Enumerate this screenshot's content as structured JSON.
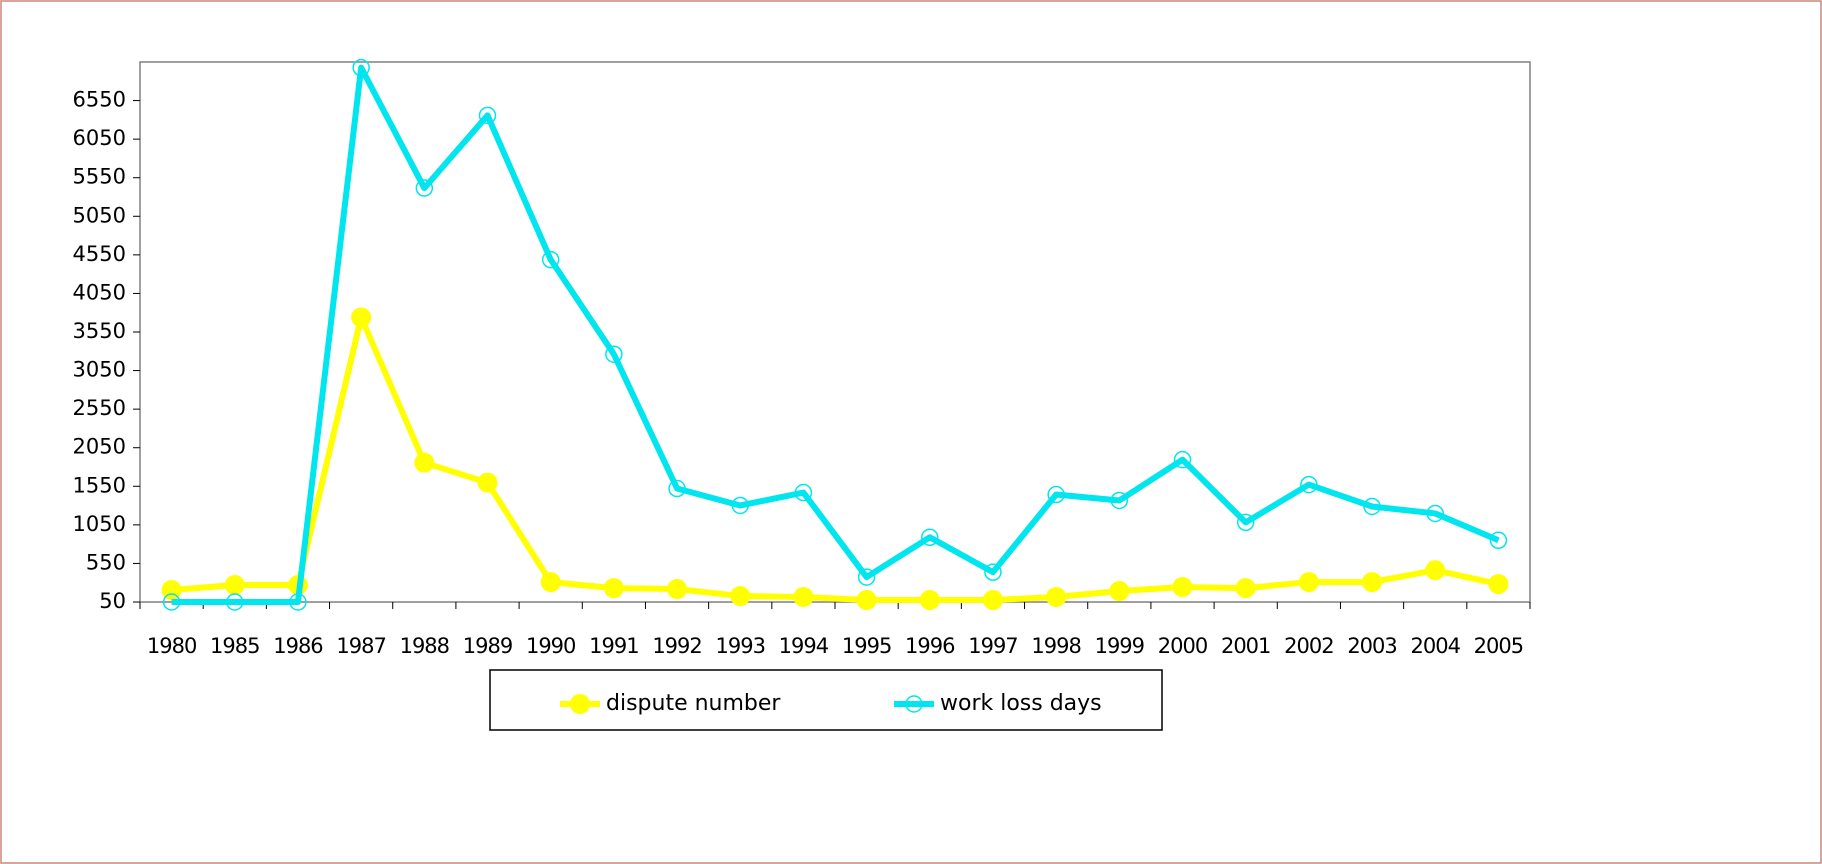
{
  "chart_data": {
    "type": "line",
    "categories": [
      "1980",
      "1985",
      "1986",
      "1987",
      "1988",
      "1989",
      "1990",
      "1991",
      "1992",
      "1993",
      "1994",
      "1995",
      "1996",
      "1997",
      "1998",
      "1999",
      "2000",
      "2001",
      "2002",
      "2003",
      "2004",
      "2005"
    ],
    "series": [
      {
        "name": "dispute number",
        "color": "#ffff00",
        "marker": "filled",
        "values": [
          205,
          270,
          270,
          3740,
          1856,
          1598,
          308,
          230,
          218,
          127,
          115,
          76,
          76,
          76,
          115,
          192,
          244,
          230,
          308,
          308,
          463,
          282
        ]
      },
      {
        "name": "work loss days",
        "color": "#00e5ee",
        "marker": "ring",
        "values": [
          50,
          50,
          50,
          6977,
          5416,
          6358,
          4488,
          3262,
          1521,
          1301,
          1469,
          373,
          889,
          437,
          1443,
          1366,
          1895,
          1082,
          1572,
          1288,
          1198,
          850
        ]
      }
    ],
    "ylim": [
      50,
      7050
    ],
    "yticks": [
      50,
      550,
      1050,
      1550,
      2050,
      2550,
      3050,
      3550,
      4050,
      4550,
      5050,
      5550,
      6050,
      6550
    ],
    "grid": false,
    "legend": "bottom"
  }
}
